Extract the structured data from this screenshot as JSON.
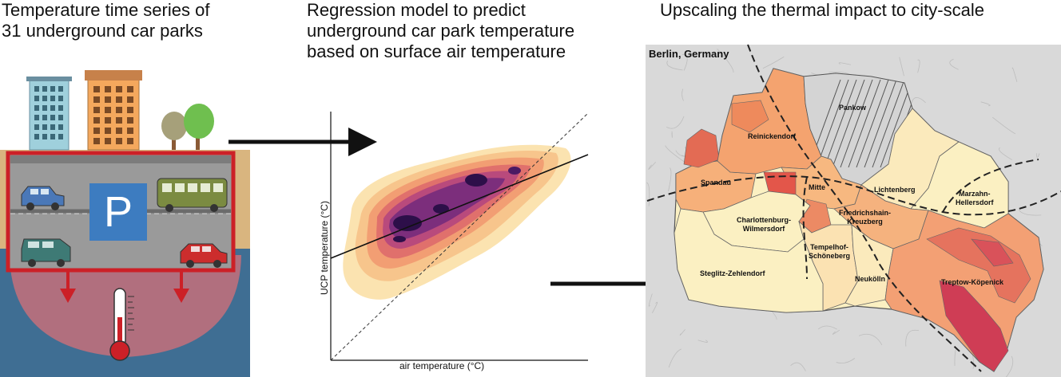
{
  "panels": {
    "left_title": "Temperature time series of\n31 underground car parks",
    "middle_title": "Regression model to predict\nunderground car park temperature\nbased on surface air temperature",
    "right_title": "Upscaling the thermal impact to city-scale"
  },
  "carpark": {
    "parking_sign": "P"
  },
  "regression": {
    "xlabel": "air temperature (°C)",
    "ylabel": "UCP temperature (°C)"
  },
  "map": {
    "city_label": "Berlin, Germany",
    "districts": {
      "pankow": "Pankow",
      "reinickendorf": "Reinickendorf",
      "spandau": "Spandau",
      "mitte": "Mitte",
      "lichtenberg": "Lichtenberg",
      "marzahn": "Marzahn-\nHellersdorf",
      "charlottenburg": "Charlottenburg-\nWilmersdorf",
      "friedrichshain": "Friedrichshain-\nKreuzberg",
      "tempelhof": "Tempelhof-\nSchöneberg",
      "steglitz": "Steglitz-Zehlendorf",
      "neukoelln": "Neukölln",
      "treptow": "Treptow-Köpenick"
    }
  },
  "colors": {
    "ground": "#d9b57f",
    "water": "#3f6e93",
    "heat_plume": "#d87077",
    "frame_red": "#cc2027",
    "road": "#9a9a9a",
    "parking_blue": "#3d7cc0"
  }
}
